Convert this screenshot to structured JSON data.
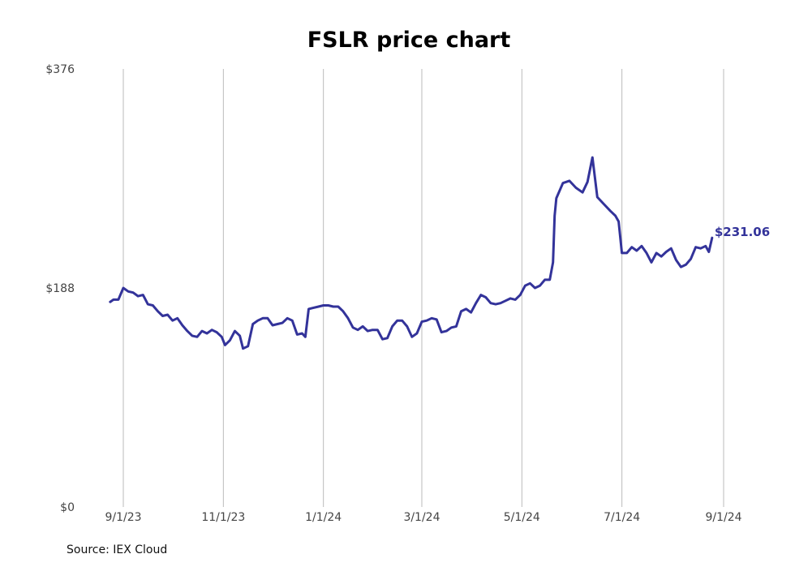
{
  "chart_data": {
    "type": "line",
    "title": "FSLR price chart",
    "source": "Source: IEX Cloud",
    "ylim": [
      0,
      376
    ],
    "y_tick_labels": [
      "$0",
      "$188",
      "$376"
    ],
    "y_ticks": [
      0,
      188,
      376
    ],
    "x_tick_labels": [
      "9/1/23",
      "11/1/23",
      "1/1/24",
      "3/1/24",
      "5/1/24",
      "7/1/24",
      "9/1/24"
    ],
    "x_ticks": [
      "2023-09-01",
      "2023-11-01",
      "2024-01-01",
      "2024-03-01",
      "2024-05-01",
      "2024-07-01",
      "2024-09-01"
    ],
    "x_range": [
      "2023-09-01",
      "2024-09-01"
    ],
    "grid": "vertical",
    "line_color": "#33339a",
    "series": [
      {
        "name": "",
        "end_label": "$231.06",
        "points": [
          [
            "2023-08-24",
            176
          ],
          [
            "2023-08-26",
            178
          ],
          [
            "2023-08-29",
            178
          ],
          [
            "2023-09-01",
            188
          ],
          [
            "2023-09-04",
            185
          ],
          [
            "2023-09-07",
            184
          ],
          [
            "2023-09-10",
            181
          ],
          [
            "2023-09-13",
            182
          ],
          [
            "2023-09-16",
            174
          ],
          [
            "2023-09-19",
            173
          ],
          [
            "2023-09-22",
            168
          ],
          [
            "2023-09-25",
            164
          ],
          [
            "2023-09-28",
            165
          ],
          [
            "2023-10-01",
            160
          ],
          [
            "2023-10-04",
            162
          ],
          [
            "2023-10-07",
            156
          ],
          [
            "2023-10-10",
            151
          ],
          [
            "2023-10-13",
            147
          ],
          [
            "2023-10-16",
            146
          ],
          [
            "2023-10-19",
            151
          ],
          [
            "2023-10-22",
            149
          ],
          [
            "2023-10-25",
            152
          ],
          [
            "2023-10-28",
            150
          ],
          [
            "2023-10-31",
            146
          ],
          [
            "2023-11-02",
            139
          ],
          [
            "2023-11-05",
            143
          ],
          [
            "2023-11-08",
            151
          ],
          [
            "2023-11-11",
            147
          ],
          [
            "2023-11-13",
            136
          ],
          [
            "2023-11-16",
            138
          ],
          [
            "2023-11-19",
            157
          ],
          [
            "2023-11-22",
            160
          ],
          [
            "2023-11-25",
            162
          ],
          [
            "2023-11-28",
            162
          ],
          [
            "2023-12-01",
            156
          ],
          [
            "2023-12-04",
            157
          ],
          [
            "2023-12-07",
            158
          ],
          [
            "2023-12-10",
            162
          ],
          [
            "2023-12-13",
            160
          ],
          [
            "2023-12-16",
            148
          ],
          [
            "2023-12-19",
            149
          ],
          [
            "2023-12-21",
            146
          ],
          [
            "2023-12-23",
            170
          ],
          [
            "2023-12-26",
            171
          ],
          [
            "2023-12-29",
            172
          ],
          [
            "2024-01-01",
            173
          ],
          [
            "2024-01-04",
            173
          ],
          [
            "2024-01-07",
            172
          ],
          [
            "2024-01-10",
            172
          ],
          [
            "2024-01-13",
            168
          ],
          [
            "2024-01-16",
            162
          ],
          [
            "2024-01-19",
            154
          ],
          [
            "2024-01-22",
            152
          ],
          [
            "2024-01-25",
            155
          ],
          [
            "2024-01-28",
            151
          ],
          [
            "2024-01-31",
            152
          ],
          [
            "2024-02-03",
            152
          ],
          [
            "2024-02-06",
            144
          ],
          [
            "2024-02-09",
            145
          ],
          [
            "2024-02-12",
            155
          ],
          [
            "2024-02-15",
            160
          ],
          [
            "2024-02-18",
            160
          ],
          [
            "2024-02-21",
            155
          ],
          [
            "2024-02-24",
            146
          ],
          [
            "2024-02-27",
            149
          ],
          [
            "2024-03-01",
            159
          ],
          [
            "2024-03-04",
            160
          ],
          [
            "2024-03-07",
            162
          ],
          [
            "2024-03-10",
            161
          ],
          [
            "2024-03-13",
            150
          ],
          [
            "2024-03-16",
            151
          ],
          [
            "2024-03-19",
            154
          ],
          [
            "2024-03-22",
            155
          ],
          [
            "2024-03-25",
            168
          ],
          [
            "2024-03-28",
            170
          ],
          [
            "2024-03-31",
            167
          ],
          [
            "2024-04-03",
            175
          ],
          [
            "2024-04-06",
            182
          ],
          [
            "2024-04-09",
            180
          ],
          [
            "2024-04-12",
            175
          ],
          [
            "2024-04-15",
            174
          ],
          [
            "2024-04-18",
            175
          ],
          [
            "2024-04-21",
            177
          ],
          [
            "2024-04-24",
            179
          ],
          [
            "2024-04-27",
            178
          ],
          [
            "2024-04-30",
            182
          ],
          [
            "2024-05-03",
            190
          ],
          [
            "2024-05-06",
            192
          ],
          [
            "2024-05-09",
            188
          ],
          [
            "2024-05-12",
            190
          ],
          [
            "2024-05-15",
            195
          ],
          [
            "2024-05-18",
            195
          ],
          [
            "2024-05-20",
            210
          ],
          [
            "2024-05-21",
            250
          ],
          [
            "2024-05-22",
            265
          ],
          [
            "2024-05-26",
            278
          ],
          [
            "2024-05-30",
            280
          ],
          [
            "2024-06-03",
            274
          ],
          [
            "2024-06-07",
            270
          ],
          [
            "2024-06-10",
            279
          ],
          [
            "2024-06-13",
            300
          ],
          [
            "2024-06-16",
            266
          ],
          [
            "2024-06-20",
            260
          ],
          [
            "2024-06-24",
            254
          ],
          [
            "2024-06-27",
            250
          ],
          [
            "2024-06-29",
            245
          ],
          [
            "2024-07-01",
            218
          ],
          [
            "2024-07-04",
            218
          ],
          [
            "2024-07-07",
            223
          ],
          [
            "2024-07-10",
            220
          ],
          [
            "2024-07-13",
            224
          ],
          [
            "2024-07-16",
            218
          ],
          [
            "2024-07-19",
            210
          ],
          [
            "2024-07-22",
            218
          ],
          [
            "2024-07-25",
            215
          ],
          [
            "2024-07-28",
            219
          ],
          [
            "2024-07-31",
            222
          ],
          [
            "2024-08-03",
            212
          ],
          [
            "2024-08-06",
            206
          ],
          [
            "2024-08-09",
            208
          ],
          [
            "2024-08-12",
            213
          ],
          [
            "2024-08-15",
            223
          ],
          [
            "2024-08-18",
            222
          ],
          [
            "2024-08-21",
            224
          ],
          [
            "2024-08-23",
            219
          ],
          [
            "2024-08-25",
            231.06
          ]
        ]
      }
    ]
  }
}
